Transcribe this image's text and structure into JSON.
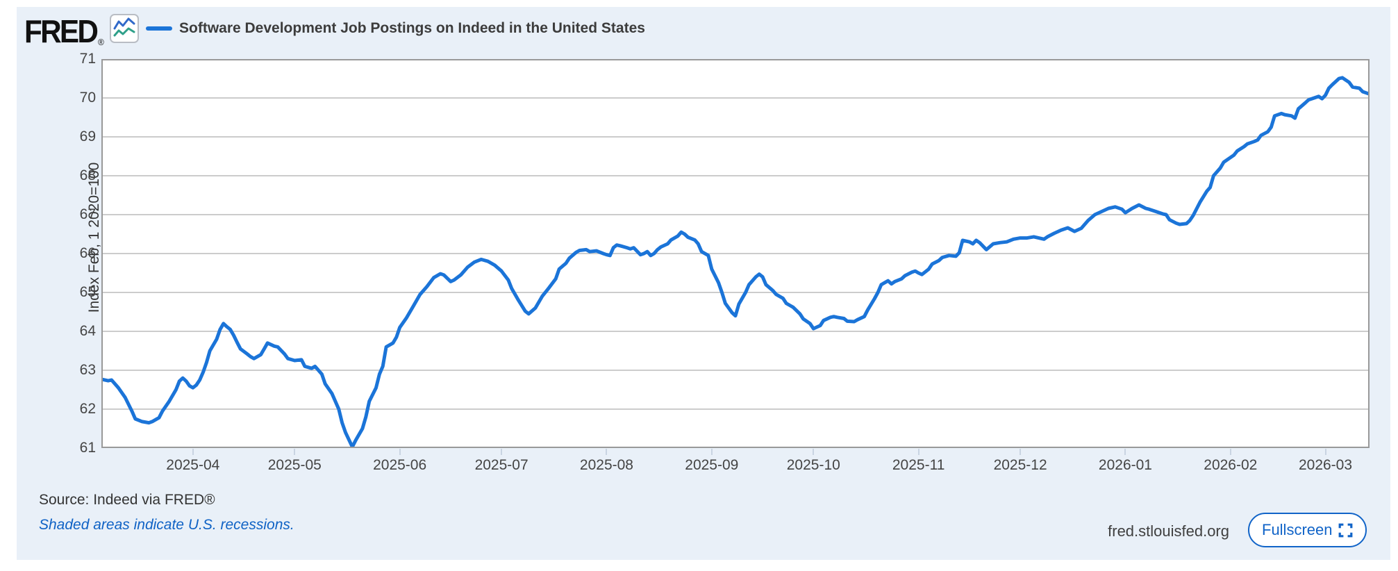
{
  "colors": {
    "page_bg": "#ffffff",
    "card_bg": "#e9f0f8",
    "plot_bg": "#ffffff",
    "plot_border": "#999999",
    "gridline": "#cccccc",
    "line": "#1b74d8",
    "tick_mark": "#c9d4e2",
    "legend_text": "#3c3c3c",
    "tick_text": "#444444",
    "link_blue": "#0f62c5",
    "button_blue": "#1164c8",
    "logo_black": "#111111",
    "icon_blue": "#3069c9",
    "icon_teal": "#2fa08a",
    "icon_border": "#b9bdc4"
  },
  "header": {
    "logo_text": "FRED",
    "logo_registered": "®",
    "chart_icon": "line-chart-icon",
    "legend_label": "Software Development Job Postings on Indeed in the United States"
  },
  "footer": {
    "source_label": "Source: Indeed via FRED®",
    "recession_note": "Shaded areas indicate U.S. recessions.",
    "site_url": "fred.stlouisfed.org",
    "fullscreen_label": "Fullscreen",
    "fullscreen_icon": "fullscreen-expand-icon"
  },
  "chart_data": {
    "type": "line",
    "title": "Software Development Job Postings on Indeed in the United States",
    "ylabel": "Index Feb, 1 2020=100",
    "xlabel": "",
    "ylim": [
      61,
      71
    ],
    "yticks": [
      61,
      62,
      63,
      64,
      65,
      66,
      67,
      68,
      69,
      70,
      71
    ],
    "grid": "horizontal",
    "legend_position": "top-left",
    "x_range": [
      "2025-03-05",
      "2026-03-14"
    ],
    "xticks": [
      {
        "date": "2025-04-01",
        "label": "2025-04"
      },
      {
        "date": "2025-05-01",
        "label": "2025-05"
      },
      {
        "date": "2025-06-01",
        "label": "2025-06"
      },
      {
        "date": "2025-07-01",
        "label": "2025-07"
      },
      {
        "date": "2025-08-01",
        "label": "2025-08"
      },
      {
        "date": "2025-09-01",
        "label": "2025-09"
      },
      {
        "date": "2025-10-01",
        "label": "2025-10"
      },
      {
        "date": "2025-11-01",
        "label": "2025-11"
      },
      {
        "date": "2025-12-01",
        "label": "2025-12"
      },
      {
        "date": "2026-01-01",
        "label": "2026-01"
      },
      {
        "date": "2026-02-01",
        "label": "2026-02"
      },
      {
        "date": "2026-03-01",
        "label": "2026-03"
      }
    ],
    "series": [
      {
        "name": "Software Development Job Postings on Indeed in the United States",
        "color": "#1b74d8",
        "points": [
          [
            "2025-03-05",
            62.77
          ],
          [
            "2025-03-07",
            62.73
          ],
          [
            "2025-03-08",
            62.75
          ],
          [
            "2025-03-10",
            62.55
          ],
          [
            "2025-03-12",
            62.3
          ],
          [
            "2025-03-14",
            61.95
          ],
          [
            "2025-03-15",
            61.75
          ],
          [
            "2025-03-17",
            61.68
          ],
          [
            "2025-03-19",
            61.65
          ],
          [
            "2025-03-20",
            61.68
          ],
          [
            "2025-03-22",
            61.78
          ],
          [
            "2025-03-23",
            61.95
          ],
          [
            "2025-03-25",
            62.2
          ],
          [
            "2025-03-27",
            62.5
          ],
          [
            "2025-03-28",
            62.72
          ],
          [
            "2025-03-29",
            62.8
          ],
          [
            "2025-03-30",
            62.72
          ],
          [
            "2025-03-31",
            62.6
          ],
          [
            "2025-04-01",
            62.55
          ],
          [
            "2025-04-02",
            62.62
          ],
          [
            "2025-04-03",
            62.75
          ],
          [
            "2025-04-04",
            62.95
          ],
          [
            "2025-04-05",
            63.2
          ],
          [
            "2025-04-06",
            63.5
          ],
          [
            "2025-04-08",
            63.8
          ],
          [
            "2025-04-09",
            64.05
          ],
          [
            "2025-04-10",
            64.2
          ],
          [
            "2025-04-11",
            64.12
          ],
          [
            "2025-04-12",
            64.05
          ],
          [
            "2025-04-13",
            63.9
          ],
          [
            "2025-04-14",
            63.72
          ],
          [
            "2025-04-15",
            63.55
          ],
          [
            "2025-04-17",
            63.42
          ],
          [
            "2025-04-18",
            63.35
          ],
          [
            "2025-04-19",
            63.3
          ],
          [
            "2025-04-21",
            63.4
          ],
          [
            "2025-04-22",
            63.55
          ],
          [
            "2025-04-23",
            63.7
          ],
          [
            "2025-04-25",
            63.62
          ],
          [
            "2025-04-26",
            63.6
          ],
          [
            "2025-04-28",
            63.42
          ],
          [
            "2025-04-29",
            63.3
          ],
          [
            "2025-05-01",
            63.25
          ],
          [
            "2025-05-03",
            63.27
          ],
          [
            "2025-05-04",
            63.1
          ],
          [
            "2025-05-06",
            63.05
          ],
          [
            "2025-05-07",
            63.1
          ],
          [
            "2025-05-09",
            62.9
          ],
          [
            "2025-05-10",
            62.65
          ],
          [
            "2025-05-12",
            62.4
          ],
          [
            "2025-05-14",
            62.0
          ],
          [
            "2025-05-15",
            61.65
          ],
          [
            "2025-05-16",
            61.4
          ],
          [
            "2025-05-18",
            61.03
          ],
          [
            "2025-05-19",
            61.2
          ],
          [
            "2025-05-21",
            61.5
          ],
          [
            "2025-05-22",
            61.8
          ],
          [
            "2025-05-23",
            62.2
          ],
          [
            "2025-05-25",
            62.55
          ],
          [
            "2025-05-26",
            62.9
          ],
          [
            "2025-05-27",
            63.1
          ],
          [
            "2025-05-28",
            63.6
          ],
          [
            "2025-05-30",
            63.7
          ],
          [
            "2025-05-31",
            63.85
          ],
          [
            "2025-06-01",
            64.1
          ],
          [
            "2025-06-03",
            64.35
          ],
          [
            "2025-06-05",
            64.65
          ],
          [
            "2025-06-07",
            64.95
          ],
          [
            "2025-06-09",
            65.15
          ],
          [
            "2025-06-11",
            65.38
          ],
          [
            "2025-06-13",
            65.48
          ],
          [
            "2025-06-14",
            65.45
          ],
          [
            "2025-06-16",
            65.28
          ],
          [
            "2025-06-17",
            65.32
          ],
          [
            "2025-06-19",
            65.45
          ],
          [
            "2025-06-21",
            65.65
          ],
          [
            "2025-06-23",
            65.78
          ],
          [
            "2025-06-25",
            65.85
          ],
          [
            "2025-06-27",
            65.8
          ],
          [
            "2025-06-29",
            65.7
          ],
          [
            "2025-07-01",
            65.55
          ],
          [
            "2025-07-03",
            65.32
          ],
          [
            "2025-07-04",
            65.1
          ],
          [
            "2025-07-06",
            64.8
          ],
          [
            "2025-07-08",
            64.52
          ],
          [
            "2025-07-09",
            64.45
          ],
          [
            "2025-07-11",
            64.6
          ],
          [
            "2025-07-13",
            64.9
          ],
          [
            "2025-07-15",
            65.12
          ],
          [
            "2025-07-17",
            65.35
          ],
          [
            "2025-07-18",
            65.6
          ],
          [
            "2025-07-20",
            65.75
          ],
          [
            "2025-07-21",
            65.88
          ],
          [
            "2025-07-23",
            66.03
          ],
          [
            "2025-07-24",
            66.08
          ],
          [
            "2025-07-26",
            66.1
          ],
          [
            "2025-07-27",
            66.05
          ],
          [
            "2025-07-29",
            66.07
          ],
          [
            "2025-07-31",
            66.0
          ],
          [
            "2025-08-01",
            65.97
          ],
          [
            "2025-08-02",
            65.95
          ],
          [
            "2025-08-03",
            66.15
          ],
          [
            "2025-08-04",
            66.22
          ],
          [
            "2025-08-05",
            66.2
          ],
          [
            "2025-08-07",
            66.15
          ],
          [
            "2025-08-08",
            66.12
          ],
          [
            "2025-08-09",
            66.15
          ],
          [
            "2025-08-11",
            65.97
          ],
          [
            "2025-08-12",
            66.0
          ],
          [
            "2025-08-13",
            66.05
          ],
          [
            "2025-08-14",
            65.95
          ],
          [
            "2025-08-15",
            66.0
          ],
          [
            "2025-08-16",
            66.1
          ],
          [
            "2025-08-17",
            66.17
          ],
          [
            "2025-08-19",
            66.25
          ],
          [
            "2025-08-20",
            66.35
          ],
          [
            "2025-08-22",
            66.45
          ],
          [
            "2025-08-23",
            66.55
          ],
          [
            "2025-08-24",
            66.5
          ],
          [
            "2025-08-25",
            66.42
          ],
          [
            "2025-08-27",
            66.35
          ],
          [
            "2025-08-28",
            66.25
          ],
          [
            "2025-08-29",
            66.05
          ],
          [
            "2025-08-31",
            65.95
          ],
          [
            "2025-09-01",
            65.6
          ],
          [
            "2025-09-03",
            65.25
          ],
          [
            "2025-09-04",
            65.0
          ],
          [
            "2025-09-05",
            64.72
          ],
          [
            "2025-09-07",
            64.48
          ],
          [
            "2025-09-08",
            64.4
          ],
          [
            "2025-09-09",
            64.7
          ],
          [
            "2025-09-11",
            65.0
          ],
          [
            "2025-09-12",
            65.2
          ],
          [
            "2025-09-14",
            65.4
          ],
          [
            "2025-09-15",
            65.47
          ],
          [
            "2025-09-16",
            65.4
          ],
          [
            "2025-09-17",
            65.2
          ],
          [
            "2025-09-19",
            65.05
          ],
          [
            "2025-09-20",
            64.95
          ],
          [
            "2025-09-22",
            64.85
          ],
          [
            "2025-09-23",
            64.72
          ],
          [
            "2025-09-24",
            64.67
          ],
          [
            "2025-09-25",
            64.62
          ],
          [
            "2025-09-27",
            64.45
          ],
          [
            "2025-09-28",
            64.32
          ],
          [
            "2025-09-30",
            64.2
          ],
          [
            "2025-10-01",
            64.07
          ],
          [
            "2025-10-03",
            64.15
          ],
          [
            "2025-10-04",
            64.28
          ],
          [
            "2025-10-06",
            64.36
          ],
          [
            "2025-10-07",
            64.38
          ],
          [
            "2025-10-08",
            64.36
          ],
          [
            "2025-10-10",
            64.33
          ],
          [
            "2025-10-11",
            64.26
          ],
          [
            "2025-10-13",
            64.25
          ],
          [
            "2025-10-14",
            64.3
          ],
          [
            "2025-10-16",
            64.38
          ],
          [
            "2025-10-17",
            64.55
          ],
          [
            "2025-10-19",
            64.84
          ],
          [
            "2025-10-20",
            65.0
          ],
          [
            "2025-10-21",
            65.2
          ],
          [
            "2025-10-23",
            65.3
          ],
          [
            "2025-10-24",
            65.22
          ],
          [
            "2025-10-25",
            65.28
          ],
          [
            "2025-10-27",
            65.35
          ],
          [
            "2025-10-28",
            65.43
          ],
          [
            "2025-10-30",
            65.52
          ],
          [
            "2025-10-31",
            65.55
          ],
          [
            "2025-11-01",
            65.5
          ],
          [
            "2025-11-02",
            65.46
          ],
          [
            "2025-11-04",
            65.6
          ],
          [
            "2025-11-05",
            65.73
          ],
          [
            "2025-11-07",
            65.82
          ],
          [
            "2025-11-08",
            65.9
          ],
          [
            "2025-11-10",
            65.95
          ],
          [
            "2025-11-12",
            65.93
          ],
          [
            "2025-11-13",
            66.02
          ],
          [
            "2025-11-14",
            66.34
          ],
          [
            "2025-11-16",
            66.3
          ],
          [
            "2025-11-17",
            66.25
          ],
          [
            "2025-11-18",
            66.34
          ],
          [
            "2025-11-19",
            66.28
          ],
          [
            "2025-11-21",
            66.1
          ],
          [
            "2025-11-23",
            66.25
          ],
          [
            "2025-11-25",
            66.28
          ],
          [
            "2025-11-27",
            66.3
          ],
          [
            "2025-11-29",
            66.37
          ],
          [
            "2025-12-01",
            66.4
          ],
          [
            "2025-12-03",
            66.4
          ],
          [
            "2025-12-05",
            66.43
          ],
          [
            "2025-12-08",
            66.37
          ],
          [
            "2025-12-09",
            66.43
          ],
          [
            "2025-12-11",
            66.52
          ],
          [
            "2025-12-13",
            66.6
          ],
          [
            "2025-12-15",
            66.66
          ],
          [
            "2025-12-17",
            66.57
          ],
          [
            "2025-12-19",
            66.65
          ],
          [
            "2025-12-21",
            66.85
          ],
          [
            "2025-12-23",
            67.0
          ],
          [
            "2025-12-25",
            67.08
          ],
          [
            "2025-12-27",
            67.16
          ],
          [
            "2025-12-29",
            67.2
          ],
          [
            "2025-12-31",
            67.14
          ],
          [
            "2026-01-01",
            67.05
          ],
          [
            "2026-01-03",
            67.16
          ],
          [
            "2026-01-05",
            67.25
          ],
          [
            "2026-01-07",
            67.16
          ],
          [
            "2026-01-08",
            67.14
          ],
          [
            "2026-01-10",
            67.08
          ],
          [
            "2026-01-12",
            67.02
          ],
          [
            "2026-01-13",
            67.0
          ],
          [
            "2026-01-14",
            66.87
          ],
          [
            "2026-01-16",
            66.78
          ],
          [
            "2026-01-17",
            66.75
          ],
          [
            "2026-01-19",
            66.77
          ],
          [
            "2026-01-20",
            66.85
          ],
          [
            "2026-01-21",
            66.98
          ],
          [
            "2026-01-23",
            67.32
          ],
          [
            "2026-01-25",
            67.6
          ],
          [
            "2026-01-26",
            67.7
          ],
          [
            "2026-01-27",
            68.0
          ],
          [
            "2026-01-29",
            68.2
          ],
          [
            "2026-01-30",
            68.35
          ],
          [
            "2026-02-01",
            68.47
          ],
          [
            "2026-02-02",
            68.53
          ],
          [
            "2026-02-03",
            68.64
          ],
          [
            "2026-02-05",
            68.75
          ],
          [
            "2026-02-06",
            68.82
          ],
          [
            "2026-02-08",
            68.88
          ],
          [
            "2026-02-09",
            68.92
          ],
          [
            "2026-02-10",
            69.04
          ],
          [
            "2026-02-12",
            69.13
          ],
          [
            "2026-02-13",
            69.25
          ],
          [
            "2026-02-14",
            69.54
          ],
          [
            "2026-02-16",
            69.6
          ],
          [
            "2026-02-17",
            69.57
          ],
          [
            "2026-02-19",
            69.54
          ],
          [
            "2026-02-20",
            69.48
          ],
          [
            "2026-02-21",
            69.72
          ],
          [
            "2026-02-23",
            69.87
          ],
          [
            "2026-02-24",
            69.95
          ],
          [
            "2026-02-25",
            69.98
          ],
          [
            "2026-02-27",
            70.04
          ],
          [
            "2026-02-28",
            69.98
          ],
          [
            "2026-03-01",
            70.07
          ],
          [
            "2026-03-02",
            70.25
          ],
          [
            "2026-03-03",
            70.34
          ],
          [
            "2026-03-05",
            70.5
          ],
          [
            "2026-03-06",
            70.52
          ],
          [
            "2026-03-08",
            70.4
          ],
          [
            "2026-03-09",
            70.28
          ],
          [
            "2026-03-11",
            70.25
          ],
          [
            "2026-03-12",
            70.16
          ],
          [
            "2026-03-13",
            70.13
          ],
          [
            "2026-03-14",
            70.1
          ]
        ]
      }
    ]
  }
}
